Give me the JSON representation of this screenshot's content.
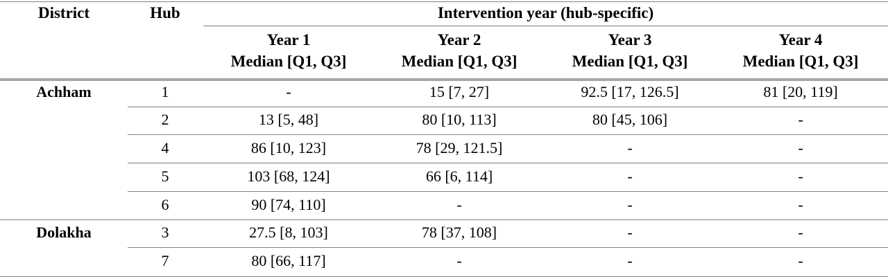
{
  "table": {
    "headers": {
      "district": "District",
      "hub": "Hub",
      "intervention": "Intervention year (hub-specific)",
      "years": [
        {
          "line1": "Year 1",
          "line2": "Median [Q1, Q3]"
        },
        {
          "line1": "Year 2",
          "line2": "Median [Q1, Q3]"
        },
        {
          "line1": "Year 3",
          "line2": "Median [Q1, Q3]"
        },
        {
          "line1": "Year 4",
          "line2": "Median [Q1, Q3]"
        }
      ]
    },
    "groups": [
      {
        "district": "Achham"
      },
      {
        "district": "Dolakha"
      }
    ],
    "rows": [
      {
        "hub": "1",
        "y1": "-",
        "y2": "15 [7, 27]",
        "y3": "92.5 [17, 126.5]",
        "y4": "81 [20, 119]"
      },
      {
        "hub": "2",
        "y1": "13 [5, 48]",
        "y2": "80 [10, 113]",
        "y3": "80 [45, 106]",
        "y4": "-"
      },
      {
        "hub": "4",
        "y1": "86 [10, 123]",
        "y2": "78 [29, 121.5]",
        "y3": "-",
        "y4": "-"
      },
      {
        "hub": "5",
        "y1": "103 [68, 124]",
        "y2": "66 [6, 114]",
        "y3": "-",
        "y4": "-"
      },
      {
        "hub": "6",
        "y1": "90 [74, 110]",
        "y2": "-",
        "y3": "-",
        "y4": "-"
      },
      {
        "hub": "3",
        "y1": "27.5 [8, 103]",
        "y2": "78 [37, 108]",
        "y3": "-",
        "y4": "-"
      },
      {
        "hub": "7",
        "y1": "80 [66, 117]",
        "y2": "-",
        "y3": "-",
        "y4": "-"
      }
    ],
    "colors": {
      "rule": "#808080",
      "heavy_rule": "#a6a6a6",
      "text": "#000000"
    }
  }
}
